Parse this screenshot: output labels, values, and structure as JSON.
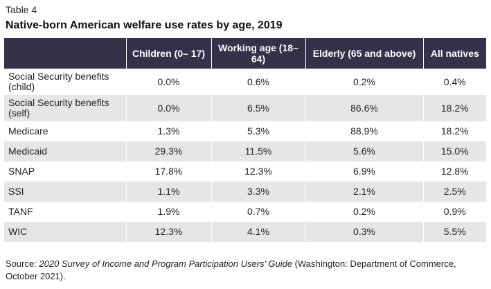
{
  "table_label": "Table 4",
  "title": "Native-born American welfare use rates by age, 2019",
  "columns": [
    "",
    "Children (0– 17)",
    "Working age (18–64)",
    "Elderly (65 and above)",
    "All natives"
  ],
  "rows": [
    {
      "label": "Social Security benefits (child)",
      "values": [
        "0.0%",
        "0.6%",
        "0.2%",
        "0.4%"
      ]
    },
    {
      "label": "Social Security benefits (self)",
      "values": [
        "0.0%",
        "6.5%",
        "86.6%",
        "18.2%"
      ]
    },
    {
      "label": "Medicare",
      "values": [
        "1.3%",
        "5.3%",
        "88.9%",
        "18.2%"
      ]
    },
    {
      "label": "Medicaid",
      "values": [
        "29.3%",
        "11.5%",
        "5.6%",
        "15.0%"
      ]
    },
    {
      "label": "SNAP",
      "values": [
        "17.8%",
        "12.3%",
        "6.9%",
        "12.8%"
      ]
    },
    {
      "label": "SSI",
      "values": [
        "1.1%",
        "3.3%",
        "2.1%",
        "2.5%"
      ]
    },
    {
      "label": "TANF",
      "values": [
        "1.9%",
        "0.7%",
        "0.2%",
        "0.9%"
      ]
    },
    {
      "label": "WIC",
      "values": [
        "12.3%",
        "4.1%",
        "0.3%",
        "5.5%"
      ]
    }
  ],
  "source": {
    "prefix": "Source: ",
    "work": "2020 Survey of Income and Program Participation Users’ Guide",
    "suffix": " (Washington: Department of Commerce, October 2021)."
  },
  "colors": {
    "header_bg": "#363048",
    "header_text": "#ffffff",
    "row_alt": "#e6e6e6",
    "row_plain": "#ffffff"
  }
}
